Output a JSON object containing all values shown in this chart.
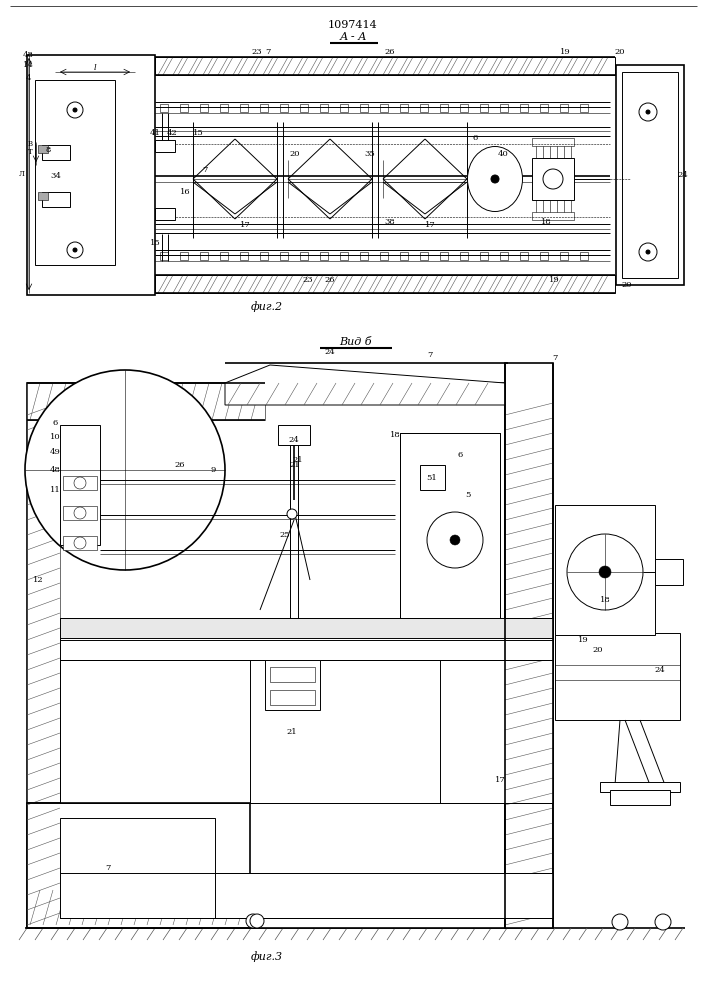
{
  "title": "1097414",
  "view1_label": "А - А",
  "fig2_label": "фиг.2",
  "fig3_label": "фиг.3",
  "view2_label": "Вид б",
  "bg_color": "#ffffff",
  "line_color": "#000000",
  "fig_width": 7.07,
  "fig_height": 10.0,
  "dpi": 100
}
